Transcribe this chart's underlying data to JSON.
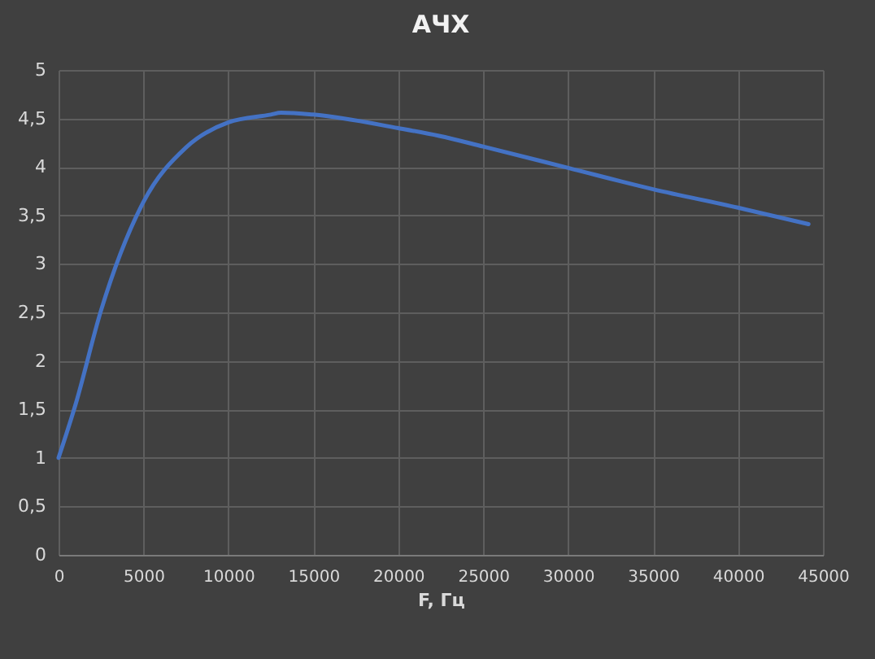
{
  "chart_data": {
    "type": "line",
    "title": "АЧХ",
    "xlabel": "F, Гц",
    "x": [
      0,
      1000,
      2500,
      5000,
      7500,
      10000,
      12500,
      13100,
      15000,
      20000,
      22400,
      25000,
      30000,
      35000,
      40000,
      44150
    ],
    "series": [
      {
        "color": "#4472c4",
        "values": [
          1,
          1.55,
          2.52,
          3.64,
          4.2,
          4.46,
          4.54,
          4.56,
          4.54,
          4.4,
          4.32,
          4.21,
          3.99,
          3.77,
          3.58,
          3.41
        ]
      }
    ],
    "xlim": [
      0,
      45000
    ],
    "xticks": [
      0,
      5000,
      10000,
      15000,
      20000,
      25000,
      30000,
      35000,
      40000,
      45000
    ],
    "ylim": [
      0,
      5
    ],
    "yticks": [
      0,
      {
        "value": 0.5,
        "label": "0,5"
      },
      1,
      {
        "value": 1.5,
        "label": "1,5"
      },
      2,
      {
        "value": 2.5,
        "label": "2,5"
      },
      3,
      {
        "value": 3.5,
        "label": "3,5"
      },
      4,
      {
        "value": 4.5,
        "label": "4,5"
      },
      5
    ],
    "grid": true,
    "legend": false,
    "marker": "none",
    "line_style": "solid"
  }
}
